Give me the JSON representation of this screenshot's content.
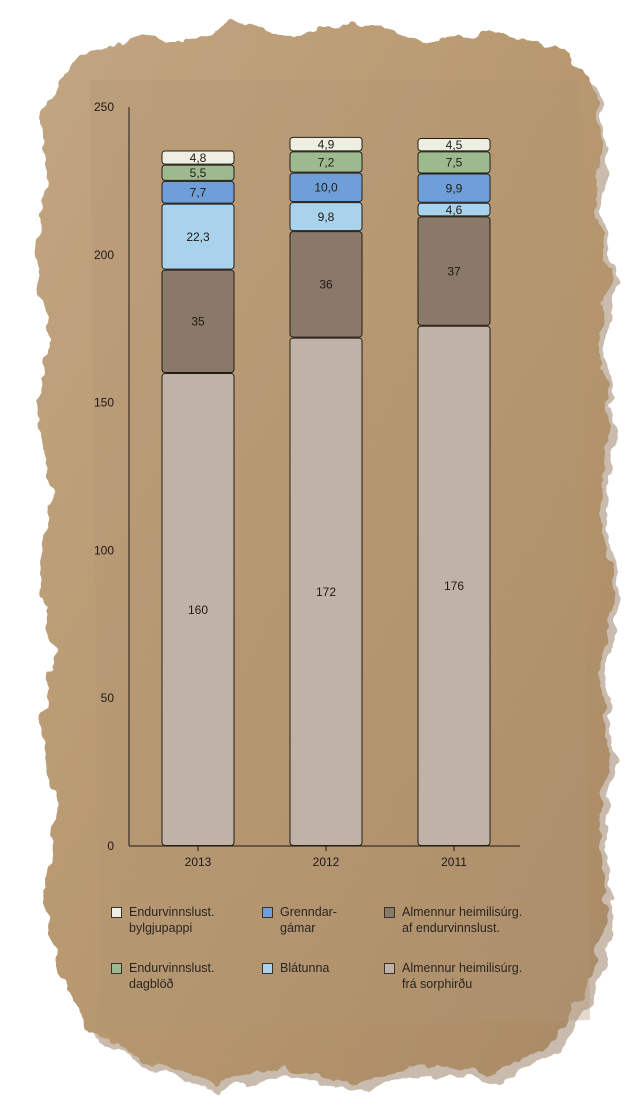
{
  "chart_data": {
    "type": "bar",
    "stacked": true,
    "categories": [
      "2013",
      "2012",
      "2011"
    ],
    "ylim": [
      0,
      250
    ],
    "yticks": [
      "0",
      "50",
      "100",
      "150",
      "200",
      "250"
    ],
    "series": [
      {
        "name": "Almennur heimilisúrg.\nfrá sorphirðu",
        "color": "#c0b2a6",
        "values": [
          160,
          172,
          176
        ],
        "labels": [
          "160",
          "172",
          "176"
        ]
      },
      {
        "name": "Almennur heimilisúrg.\naf endurvinnslust.",
        "color": "#8a7868",
        "values": [
          35,
          36,
          37
        ],
        "labels": [
          "35",
          "36",
          "37"
        ]
      },
      {
        "name": "Blátunna",
        "color": "#a9d2ec",
        "values": [
          22.3,
          9.8,
          4.6
        ],
        "labels": [
          "22,3",
          "9,8",
          "4,6"
        ]
      },
      {
        "name": "Grenndar-\ngámar",
        "color": "#6f9fd8",
        "values": [
          7.7,
          10.0,
          9.9
        ],
        "labels": [
          "7,7",
          "10,0",
          "9,9"
        ]
      },
      {
        "name": "Endurvinnslust.\ndagblöð",
        "color": "#9dba8f",
        "values": [
          5.5,
          7.2,
          7.5
        ],
        "labels": [
          "5,5",
          "7,2",
          "7,5"
        ]
      },
      {
        "name": "Endurvinnslust.\nbylgjupappi",
        "color": "#eeeee2",
        "values": [
          4.8,
          4.9,
          4.5
        ],
        "labels": [
          "4,8",
          "4,9",
          "4,5"
        ]
      }
    ],
    "legend": [
      {
        "series": 5,
        "color": "#eeeee2"
      },
      {
        "series": 3,
        "color": "#6f9fd8"
      },
      {
        "series": 1,
        "color": "#8a7868"
      },
      {
        "series": 4,
        "color": "#9dba8f"
      },
      {
        "series": 2,
        "color": "#a9d2ec"
      },
      {
        "series": 0,
        "color": "#c0b2a6"
      }
    ],
    "legend_placement": "bottom",
    "grid": false,
    "background": "#b89a78"
  }
}
